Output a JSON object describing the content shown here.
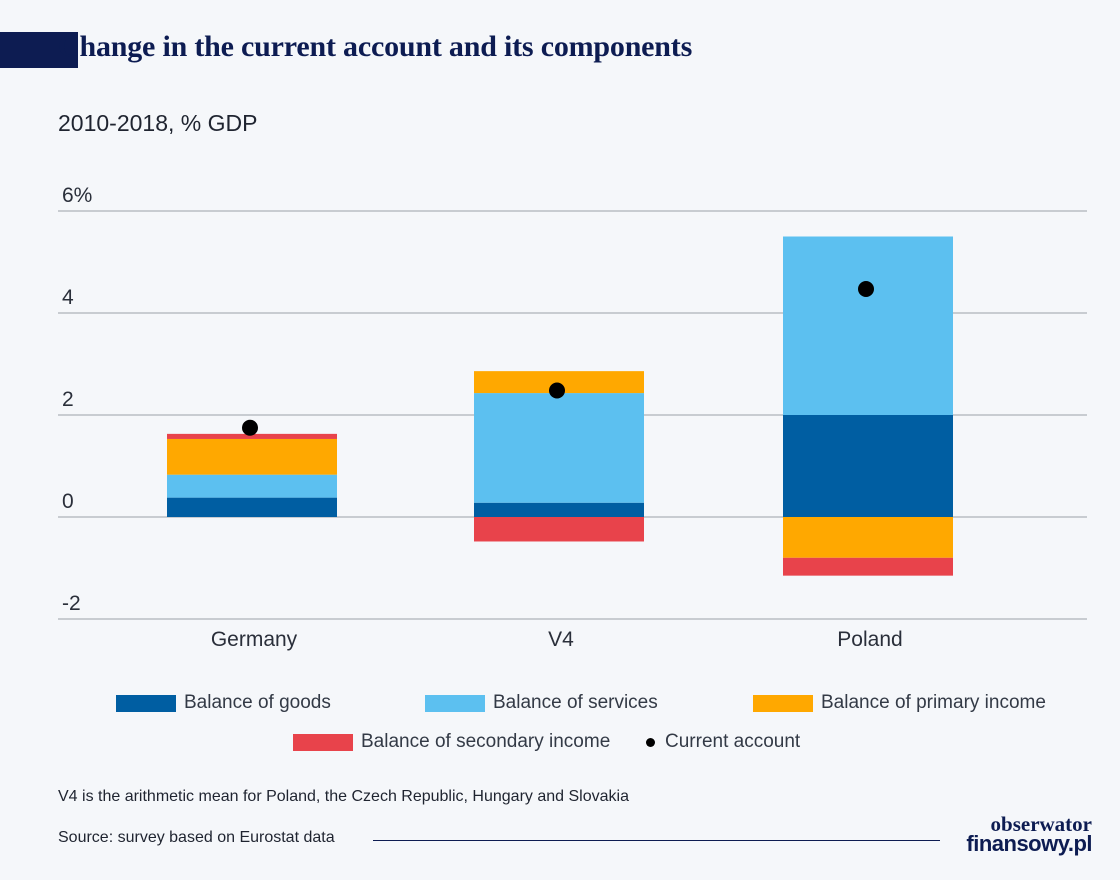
{
  "title": "Change in the current account and its components",
  "subtitle": "2010-2018, % GDP",
  "colors": {
    "goods": "#005ea2",
    "services": "#5cc0f0",
    "primary": "#ffa800",
    "secondary": "#e8434b",
    "current": "#000000",
    "navy": "#0d1c52"
  },
  "chart_data": {
    "type": "bar",
    "stacked": true,
    "categories": [
      "Germany",
      "V4",
      "Poland"
    ],
    "series": [
      {
        "name": "Balance of goods",
        "values": [
          0.38,
          0.28,
          2.0
        ]
      },
      {
        "name": "Balance of services",
        "values": [
          0.45,
          2.15,
          3.5
        ]
      },
      {
        "name": "Balance of primary income",
        "values": [
          0.7,
          0.43,
          -0.8
        ]
      },
      {
        "name": "Balance of secondary income",
        "values": [
          0.1,
          -0.48,
          -0.35
        ]
      }
    ],
    "current_account": {
      "name": "Current account",
      "values": [
        1.75,
        2.48,
        4.47
      ]
    },
    "ylim": [
      -2,
      6
    ],
    "yticks": [
      6,
      4,
      2,
      0,
      -2
    ],
    "ytick_labels": [
      "6%",
      "4",
      "2",
      "0",
      "-2"
    ],
    "grid": true,
    "legend": "bottom"
  },
  "legend_labels": {
    "goods": "Balance of goods",
    "services": "Balance of services",
    "primary": "Balance of primary income",
    "secondary": "Balance of secondary income",
    "current": "Current account"
  },
  "footnote": "V4 is the arithmetic mean for Poland, the Czech Republic, Hungary and Slovakia",
  "source": "Source: survey based on Eurostat data",
  "logo": {
    "line1": "obserwator",
    "line2": "finansowy.pl"
  }
}
